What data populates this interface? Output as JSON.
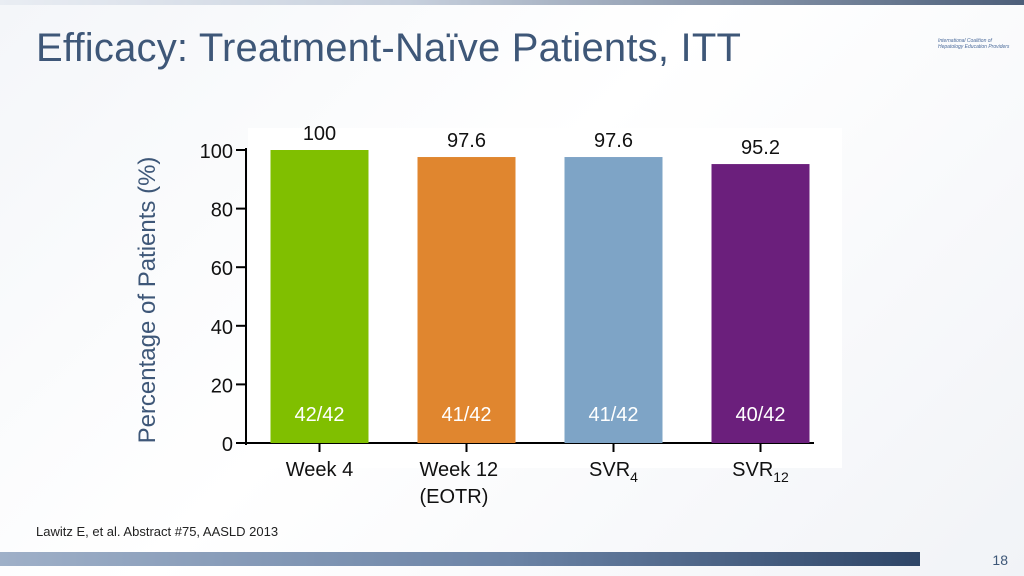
{
  "slide": {
    "title": "Efficacy: Treatment-Naïve Patients, ITT",
    "logo_line1": "International Coalition of",
    "logo_line2": "Hepatology Education Providers",
    "citation": "Lawitz E, et al. Abstract #75, AASLD 2013",
    "page_number": "18"
  },
  "chart_data": {
    "type": "bar",
    "ylabel": "Percentage of Patients (%)",
    "ylim": [
      0,
      100
    ],
    "yticks": [
      0,
      20,
      40,
      60,
      80,
      100
    ],
    "categories": [
      {
        "label": "Week 4",
        "sub": "",
        "line2": ""
      },
      {
        "label": "Week 12",
        "sub": "",
        "line2": "(EOTR)"
      },
      {
        "label": "SVR",
        "sub": "4",
        "line2": ""
      },
      {
        "label": "SVR",
        "sub": "12",
        "line2": ""
      }
    ],
    "values": [
      100,
      97.6,
      97.6,
      95.2
    ],
    "value_labels": [
      "100",
      "97.6",
      "97.6",
      "95.2"
    ],
    "fractions": [
      "42/42",
      "41/42",
      "41/42",
      "40/42"
    ],
    "colors": [
      "#80bf00",
      "#e0862f",
      "#7ea4c6",
      "#6b1f7c"
    ],
    "grid": false,
    "legend": "none"
  }
}
